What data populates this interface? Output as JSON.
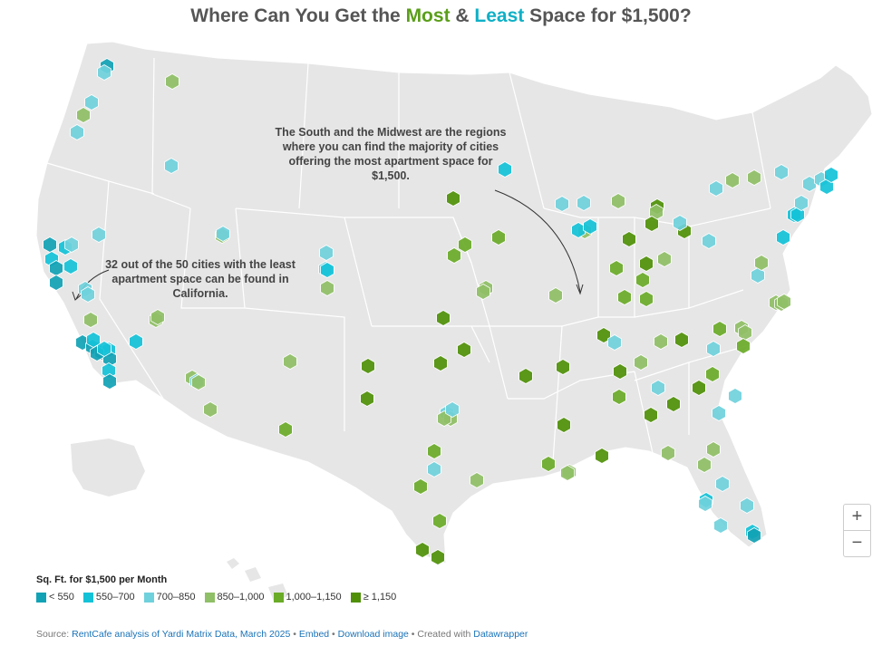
{
  "title": {
    "prefix": "Where Can You Get the ",
    "most": "Most",
    "amp": " & ",
    "least": "Least",
    "suffix": " Space for $1,500?"
  },
  "annotations": {
    "south": "The South and the Midwest are the regions where you can find the majority of cities offering the most apartment space for $1,500.",
    "california": "32 out of the 50 cities with the least apartment space can be found in California."
  },
  "zoom": {
    "in": "+",
    "out": "−"
  },
  "legend": {
    "title": "Sq. Ft. for $1,500 per Month",
    "items": [
      {
        "label": "< 550",
        "color": "#11a2b5"
      },
      {
        "label": "550–700",
        "color": "#14c2d8"
      },
      {
        "label": "700–850",
        "color": "#6fd1dc"
      },
      {
        "label": "850–1,000",
        "color": "#8fbf66"
      },
      {
        "label": "1,000–1,150",
        "color": "#6aab28"
      },
      {
        "label": "≥ 1,150",
        "color": "#4f9008"
      }
    ]
  },
  "footer": {
    "source": "Source:",
    "rentcafe": "RentCafe analysis of Yardi Matrix Data, March 2025",
    "sep1": " • ",
    "embed": "Embed",
    "sep2": " • ",
    "download": "Download image",
    "sep3": " • Created with ",
    "dw": "Datawrapper"
  }
}
